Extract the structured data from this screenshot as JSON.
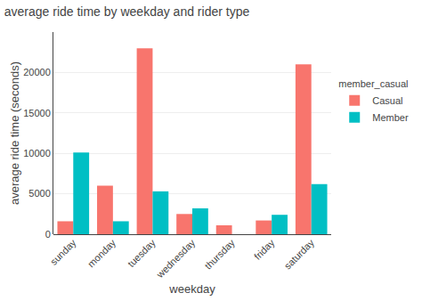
{
  "chart_data": {
    "type": "bar",
    "title": "average ride time by weekday and rider type",
    "xlabel": "weekday",
    "ylabel": "average ride time (seconds)",
    "categories": [
      "sunday",
      "monday",
      "tuesday",
      "wednesday",
      "thursday",
      "friday",
      "saturday"
    ],
    "series": [
      {
        "name": "Casual",
        "color": "#F8756D",
        "values": [
          1600,
          6000,
          23000,
          2500,
          1100,
          1700,
          21000
        ]
      },
      {
        "name": "Member",
        "color": "#00BFC4",
        "values": [
          10100,
          1600,
          5300,
          3200,
          0,
          2400,
          6200
        ]
      }
    ],
    "ylim": [
      0,
      25000
    ],
    "yticks": [
      0,
      5000,
      10000,
      15000,
      20000
    ],
    "grid": true,
    "legend": "right",
    "legend_title": "member_casual"
  }
}
